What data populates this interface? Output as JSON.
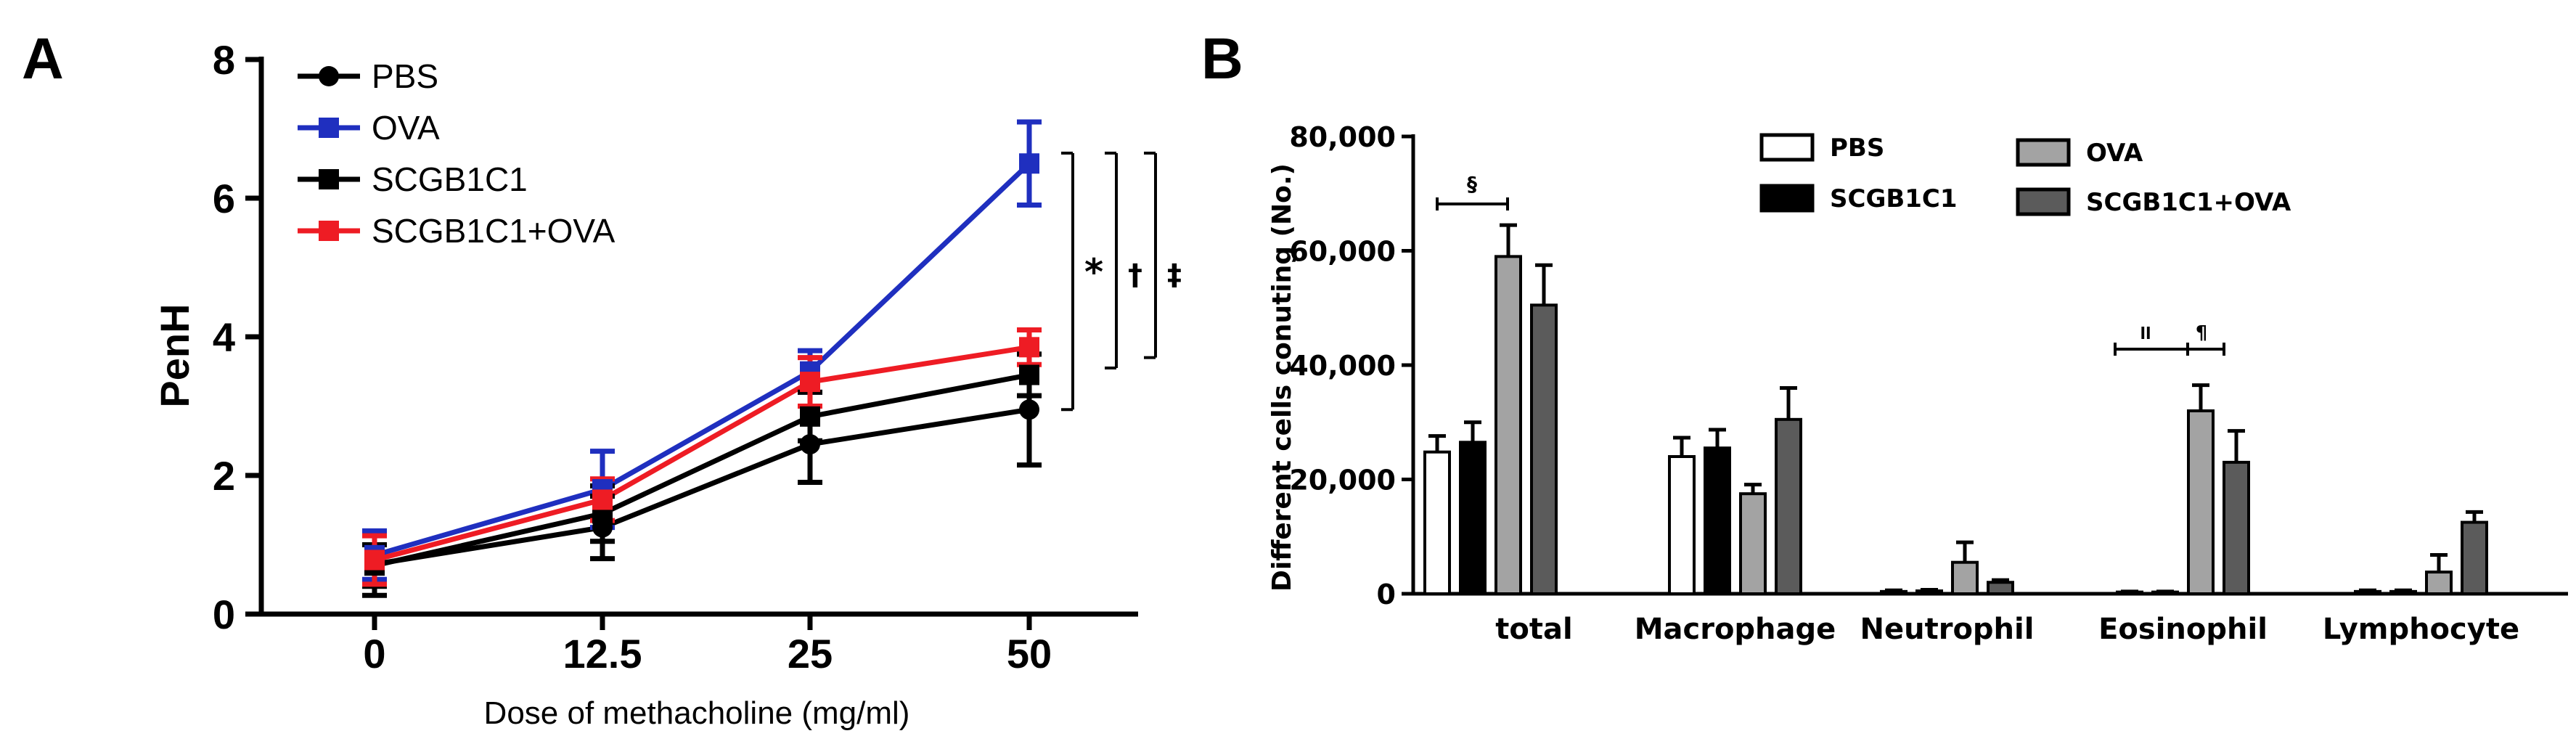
{
  "chart_data": [
    {
      "panel_label": "A",
      "type": "line",
      "title": "",
      "xlabel": "Dose of methacholine (mg/ml)",
      "ylabel": "PenH",
      "categories": [
        "0",
        "12.5",
        "25",
        "50"
      ],
      "ylim": [
        0,
        8
      ],
      "yticks": [
        "0",
        "2",
        "4",
        "6",
        "8"
      ],
      "grid": false,
      "legend_position": "top-left",
      "series": [
        {
          "name": "PBS",
          "marker": "circle",
          "color": "#000000",
          "values": [
            0.72,
            1.25,
            2.45,
            2.95
          ],
          "errors": [
            0.45,
            0.45,
            0.55,
            0.8
          ]
        },
        {
          "name": "OVA",
          "marker": "square",
          "color": "#1f2fbf",
          "values": [
            0.85,
            1.8,
            3.5,
            6.5
          ],
          "errors": [
            0.35,
            0.55,
            0.3,
            0.6
          ]
        },
        {
          "name": "SCGB1C1",
          "marker": "square",
          "color": "#000000",
          "values": [
            0.7,
            1.45,
            2.85,
            3.45
          ],
          "errors": [
            0.3,
            0.4,
            0.35,
            0.3
          ]
        },
        {
          "name": "SCGB1C1+OVA",
          "marker": "square",
          "color": "#ee1c24",
          "values": [
            0.78,
            1.65,
            3.35,
            3.85
          ],
          "errors": [
            0.35,
            0.3,
            0.35,
            0.25
          ]
        }
      ],
      "significance": [
        {
          "symbol": "*",
          "from": 2.95,
          "to": 6.65
        },
        {
          "symbol": "†",
          "from": 3.55,
          "to": 6.65
        },
        {
          "symbol": "‡",
          "from": 3.7,
          "to": 6.65
        }
      ]
    },
    {
      "panel_label": "B",
      "type": "bar",
      "title": "",
      "xlabel": "",
      "ylabel": "Different cells conuting (No.)",
      "categories": [
        "total",
        "Macrophage",
        "Neutrophil",
        "Eosinophil",
        "Lymphocyte"
      ],
      "ylim": [
        0,
        80000
      ],
      "yticks": [
        "0",
        "20,000",
        "40,000",
        "60,000",
        "80,000"
      ],
      "grid": false,
      "legend_position": "top-center",
      "series": [
        {
          "name": "PBS",
          "color": "#ffffff",
          "values": [
            24800,
            24000,
            400,
            300,
            400
          ],
          "errors": [
            2800,
            3300,
            200,
            100,
            200
          ]
        },
        {
          "name": "SCGB1C1",
          "color": "#000000",
          "values": [
            26500,
            25500,
            500,
            300,
            400
          ],
          "errors": [
            3500,
            3200,
            200,
            100,
            200
          ]
        },
        {
          "name": "OVA",
          "color": "#a3a3a3",
          "values": [
            59000,
            17500,
            5500,
            32000,
            3800
          ],
          "errors": [
            5500,
            1600,
            3500,
            4500,
            3000
          ]
        },
        {
          "name": "SCGB1C1+OVA",
          "color": "#5b5b5b",
          "values": [
            50500,
            30500,
            2000,
            23000,
            12500
          ],
          "errors": [
            7000,
            5500,
            400,
            5500,
            1800
          ]
        }
      ],
      "significance": [
        {
          "symbol": "§",
          "category": "total"
        },
        {
          "symbol": "ll",
          "category": "Eosinophil"
        },
        {
          "symbol": "¶",
          "category": "Eosinophil"
        }
      ]
    }
  ]
}
